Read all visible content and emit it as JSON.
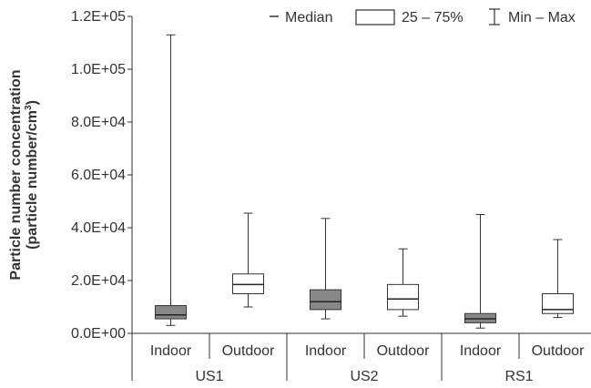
{
  "chart_data": {
    "type": "box",
    "ylabel_line1": "Particle number concentration",
    "ylabel_line2_main": "(particle number/cm",
    "ylabel_line2_sup": "3",
    "ylabel_line2_end": ")",
    "ylim": [
      0,
      120000
    ],
    "yticks": [
      {
        "value": 0,
        "label": "0.0E+00"
      },
      {
        "value": 20000,
        "label": "2.0E+04"
      },
      {
        "value": 40000,
        "label": "4.0E+04"
      },
      {
        "value": 60000,
        "label": "6.0E+04"
      },
      {
        "value": 80000,
        "label": "8.0E+04"
      },
      {
        "value": 100000,
        "label": "1.0E+05"
      },
      {
        "value": 120000,
        "label": "1.2E+05"
      }
    ],
    "groups": [
      "US1",
      "US2",
      "RS1"
    ],
    "legend": {
      "median": "Median",
      "box": "25 – 75%",
      "whisker": "Min – Max",
      "position": "top-right"
    },
    "boxes": [
      {
        "group": "US1",
        "label": "Indoor",
        "fill": "#888888",
        "min": 3000,
        "q1": 5500,
        "median": 7000,
        "q3": 10500,
        "max": 113000
      },
      {
        "group": "US1",
        "label": "Outdoor",
        "fill": "#ffffff",
        "min": 10000,
        "q1": 15000,
        "median": 18500,
        "q3": 22500,
        "max": 45500
      },
      {
        "group": "US2",
        "label": "Indoor",
        "fill": "#888888",
        "min": 5500,
        "q1": 9000,
        "median": 12000,
        "q3": 16500,
        "max": 43500
      },
      {
        "group": "US2",
        "label": "Outdoor",
        "fill": "#ffffff",
        "min": 6500,
        "q1": 9000,
        "median": 13000,
        "q3": 18500,
        "max": 32000
      },
      {
        "group": "RS1",
        "label": "Indoor",
        "fill": "#888888",
        "min": 2000,
        "q1": 4000,
        "median": 5500,
        "q3": 7500,
        "max": 45000
      },
      {
        "group": "RS1",
        "label": "Outdoor",
        "fill": "#ffffff",
        "min": 6000,
        "q1": 7500,
        "median": 9000,
        "q3": 15000,
        "max": 35500
      }
    ]
  }
}
